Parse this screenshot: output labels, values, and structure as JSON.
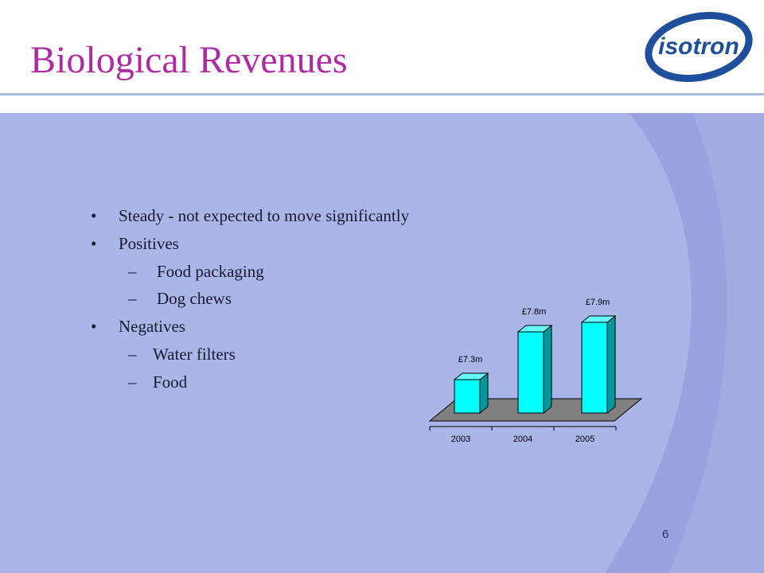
{
  "slide": {
    "title": "Biological Revenues",
    "logo_text": "isotron",
    "page_number": "6",
    "colors": {
      "title": "#b02aa5",
      "panel": "#aab5e8",
      "swoosh": "#98a3df",
      "bar_front": "#00ffff",
      "bar_side": "#009999",
      "floor": "#808080"
    }
  },
  "bullets": [
    {
      "level": 1,
      "text": "Steady - not expected to move significantly"
    },
    {
      "level": 1,
      "text": "Positives"
    },
    {
      "level": 2,
      "text": "Food packaging"
    },
    {
      "level": 2,
      "text": "Dog chews"
    },
    {
      "level": 1,
      "text": "Negatives"
    },
    {
      "level": 2,
      "text": "Water filters"
    },
    {
      "level": 2,
      "text": "Food"
    }
  ],
  "chart_data": {
    "type": "bar",
    "style": "3d-column",
    "categories": [
      "2003",
      "2004",
      "2005"
    ],
    "values": [
      7.3,
      7.8,
      7.9
    ],
    "data_labels": [
      "£7.3m",
      "£7.8m",
      "£7.9m"
    ],
    "title": "",
    "xlabel": "",
    "ylabel": "",
    "grid": false,
    "legend": false
  }
}
